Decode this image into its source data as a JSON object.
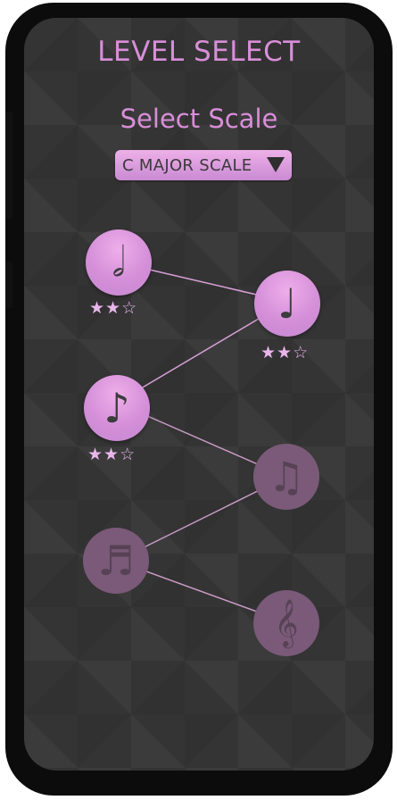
{
  "header": {
    "title": "LEVEL SELECT",
    "subtitle": "Select Scale"
  },
  "scale_selector": {
    "selected": "C MAJOR SCALE",
    "arrow_icon": "triangle-down-icon"
  },
  "colors": {
    "accent": "#d98ed9",
    "node_unlocked": "#d48fd8",
    "node_locked": "#7a5a78",
    "background": "#343434"
  },
  "levels": [
    {
      "id": 1,
      "icon": "half-note-icon",
      "glyph": "𝅗𝅥",
      "locked": false,
      "stars_earned": 2,
      "stars_total": 3
    },
    {
      "id": 2,
      "icon": "quarter-note-icon",
      "glyph": "♩",
      "locked": false,
      "stars_earned": 2,
      "stars_total": 3
    },
    {
      "id": 3,
      "icon": "eighth-note-icon",
      "glyph": "♪",
      "locked": false,
      "stars_earned": 2,
      "stars_total": 3
    },
    {
      "id": 4,
      "icon": "beamed-eighth-notes-icon",
      "glyph": "♫",
      "locked": true
    },
    {
      "id": 5,
      "icon": "sixteenth-note-icon",
      "glyph": "♬",
      "locked": true
    },
    {
      "id": 6,
      "icon": "treble-clef-icon",
      "glyph": "𝄞",
      "locked": true
    }
  ]
}
